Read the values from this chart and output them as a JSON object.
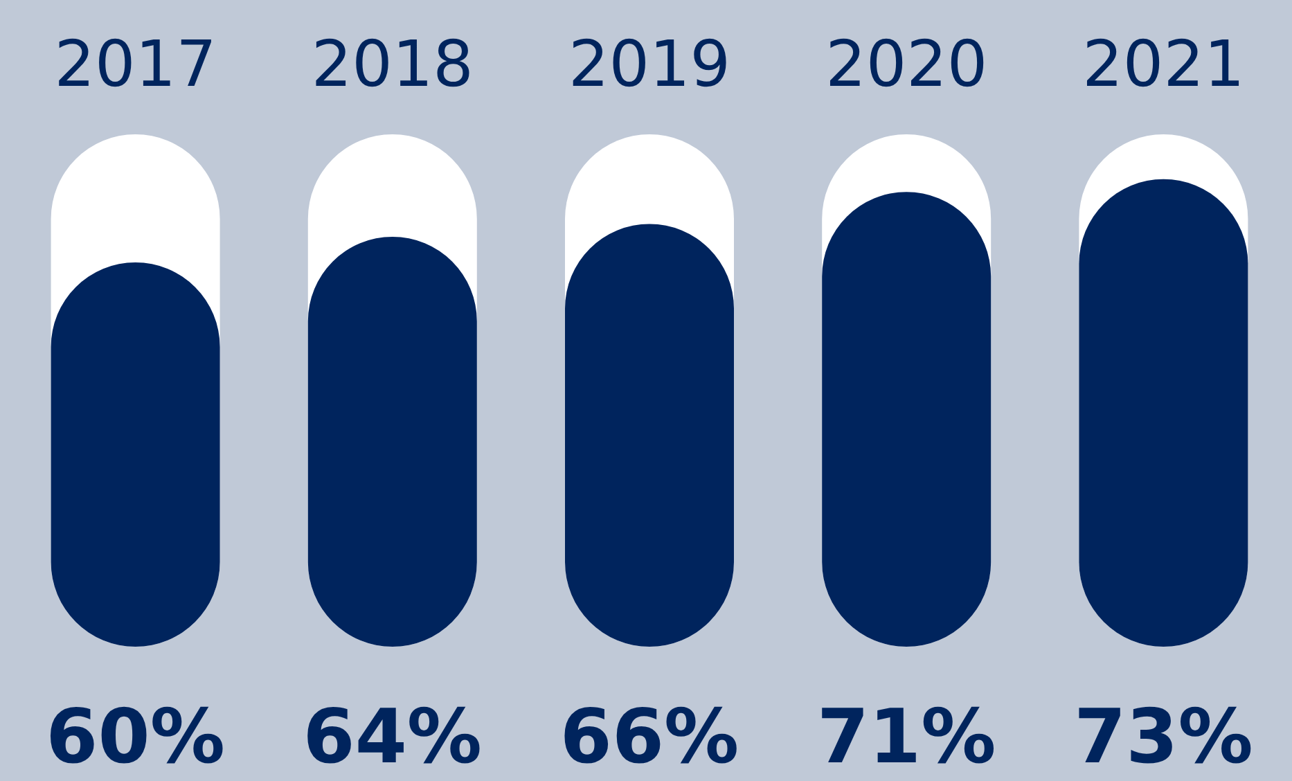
{
  "chart_data": {
    "type": "bar",
    "categories": [
      "2017",
      "2018",
      "2019",
      "2020",
      "2021"
    ],
    "values": [
      60,
      64,
      66,
      71,
      73
    ],
    "value_labels": [
      "60%",
      "64%",
      "66%",
      "71%",
      "73%"
    ],
    "color": "#00245d"
  }
}
